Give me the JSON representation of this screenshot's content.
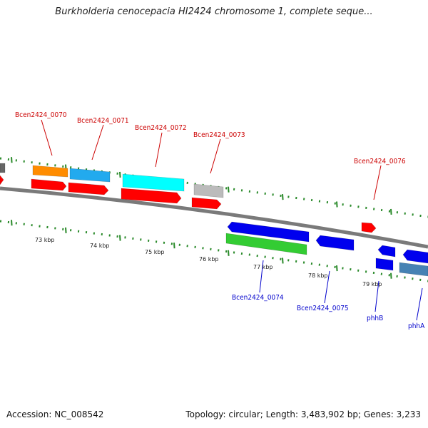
{
  "title": "Burkholderia cenocepacia HI2424 chromosome 1, complete seque...",
  "footer": {
    "accession": "Accession: NC_008542",
    "topology": "Topology: circular; Length: 3,483,902 bp; Genes: 3,233"
  },
  "colors": {
    "backbone": "#7a7a7a",
    "tick": "#2a8a2a",
    "forward_label": "#cc0000",
    "reverse_label": "#0000cc",
    "red": "#ff0000",
    "orange": "#ff8c00",
    "skyblue": "#22aaee",
    "cyan": "#00ffff",
    "gray": "#bbbbbb",
    "darkgray": "#666666",
    "blue": "#0000ee",
    "green": "#33cc33",
    "steelblue": "#4682b4"
  },
  "kbp_labels": [
    {
      "kbp": 73,
      "label": "73 kbp"
    },
    {
      "kbp": 74,
      "label": "74 kbp"
    },
    {
      "kbp": 75,
      "label": "75 kbp"
    },
    {
      "kbp": 76,
      "label": "76 kbp"
    },
    {
      "kbp": 77,
      "label": "77 kbp"
    },
    {
      "kbp": 78,
      "label": "78 kbp"
    },
    {
      "kbp": 79,
      "label": "79 kbp"
    }
  ],
  "gene_labels": [
    {
      "id": "Bcen2424_0070",
      "strand": "forward"
    },
    {
      "id": "Bcen2424_0071",
      "strand": "forward"
    },
    {
      "id": "Bcen2424_0072",
      "strand": "forward"
    },
    {
      "id": "Bcen2424_0073",
      "strand": "forward"
    },
    {
      "id": "Bcen2424_0076",
      "strand": "forward"
    },
    {
      "id": "Bcen2424_0074",
      "strand": "reverse"
    },
    {
      "id": "Bcen2424_0075",
      "strand": "reverse"
    },
    {
      "id": "phhB",
      "strand": "reverse"
    },
    {
      "id": "phhA",
      "strand": "reverse"
    }
  ]
}
